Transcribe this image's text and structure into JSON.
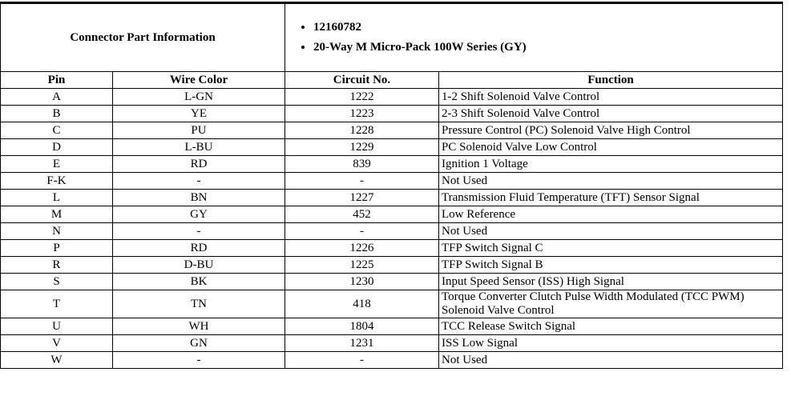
{
  "header": {
    "left_title": "Connector Part Information",
    "bullets": [
      "12160782",
      "20-Way M Micro-Pack 100W Series (GY)"
    ]
  },
  "table": {
    "columns": [
      "Pin",
      "Wire Color",
      "Circuit No.",
      "Function"
    ],
    "rows": [
      {
        "pin": "A",
        "wire_color": "L-GN",
        "circuit": "1222",
        "function": "1-2 Shift Solenoid Valve Control"
      },
      {
        "pin": "B",
        "wire_color": "YE",
        "circuit": "1223",
        "function": "2-3 Shift Solenoid Valve Control"
      },
      {
        "pin": "C",
        "wire_color": "PU",
        "circuit": "1228",
        "function": "Pressure Control (PC) Solenoid Valve High Control"
      },
      {
        "pin": "D",
        "wire_color": "L-BU",
        "circuit": "1229",
        "function": "PC Solenoid Valve Low Control"
      },
      {
        "pin": "E",
        "wire_color": "RD",
        "circuit": "839",
        "function": "Ignition 1 Voltage"
      },
      {
        "pin": "F-K",
        "wire_color": "-",
        "circuit": "-",
        "function": "Not Used"
      },
      {
        "pin": "L",
        "wire_color": "BN",
        "circuit": "1227",
        "function": "Transmission Fluid Temperature (TFT) Sensor Signal"
      },
      {
        "pin": "M",
        "wire_color": "GY",
        "circuit": "452",
        "function": "Low Reference"
      },
      {
        "pin": "N",
        "wire_color": "-",
        "circuit": "-",
        "function": "Not Used"
      },
      {
        "pin": "P",
        "wire_color": "RD",
        "circuit": "1226",
        "function": "TFP Switch Signal C"
      },
      {
        "pin": "R",
        "wire_color": "D-BU",
        "circuit": "1225",
        "function": "TFP Switch Signal B"
      },
      {
        "pin": "S",
        "wire_color": "BK",
        "circuit": "1230",
        "function": "Input Speed Sensor (ISS) High Signal"
      },
      {
        "pin": "T",
        "wire_color": "TN",
        "circuit": "418",
        "function": "Torque Converter Clutch Pulse Width Modulated (TCC PWM) Solenoid Valve Control"
      },
      {
        "pin": "U",
        "wire_color": "WH",
        "circuit": "1804",
        "function": "TCC Release Switch Signal"
      },
      {
        "pin": "V",
        "wire_color": "GN",
        "circuit": "1231",
        "function": "ISS Low Signal"
      },
      {
        "pin": "W",
        "wire_color": "-",
        "circuit": "-",
        "function": "Not Used"
      }
    ]
  }
}
